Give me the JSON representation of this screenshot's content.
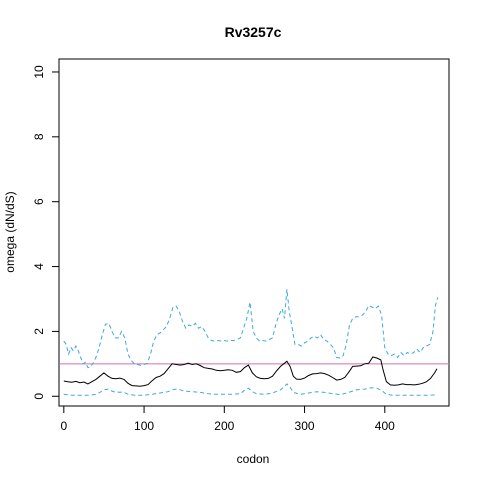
{
  "chart_data": {
    "type": "line",
    "title": "Rv3257c",
    "xlabel": "codon",
    "ylabel": "omega (dN/dS)",
    "xlim": [
      -6,
      480
    ],
    "ylim": [
      -0.3,
      10.4
    ],
    "x_ticks": [
      0,
      100,
      200,
      300,
      400
    ],
    "y_ticks": [
      0,
      2,
      4,
      6,
      8,
      10
    ],
    "reference_line": {
      "y": 1,
      "color": "#d36fb0"
    },
    "series": [
      {
        "style": "solid",
        "color": "#000000",
        "points": [
          [
            0,
            0.47
          ],
          [
            5,
            0.45
          ],
          [
            10,
            0.43
          ],
          [
            15,
            0.46
          ],
          [
            20,
            0.42
          ],
          [
            25,
            0.44
          ],
          [
            30,
            0.38
          ],
          [
            35,
            0.45
          ],
          [
            40,
            0.52
          ],
          [
            45,
            0.62
          ],
          [
            50,
            0.72
          ],
          [
            55,
            0.62
          ],
          [
            60,
            0.55
          ],
          [
            65,
            0.54
          ],
          [
            70,
            0.56
          ],
          [
            75,
            0.52
          ],
          [
            80,
            0.4
          ],
          [
            85,
            0.33
          ],
          [
            90,
            0.32
          ],
          [
            95,
            0.31
          ],
          [
            100,
            0.33
          ],
          [
            105,
            0.36
          ],
          [
            110,
            0.48
          ],
          [
            115,
            0.58
          ],
          [
            120,
            0.62
          ],
          [
            125,
            0.7
          ],
          [
            130,
            0.85
          ],
          [
            135,
            1.0
          ],
          [
            140,
            0.98
          ],
          [
            145,
            0.96
          ],
          [
            150,
            0.98
          ],
          [
            155,
            1.02
          ],
          [
            160,
            0.98
          ],
          [
            165,
            1.0
          ],
          [
            170,
            0.95
          ],
          [
            175,
            0.88
          ],
          [
            180,
            0.86
          ],
          [
            185,
            0.84
          ],
          [
            190,
            0.8
          ],
          [
            195,
            0.79
          ],
          [
            200,
            0.8
          ],
          [
            205,
            0.82
          ],
          [
            210,
            0.8
          ],
          [
            215,
            0.74
          ],
          [
            220,
            0.76
          ],
          [
            225,
            0.88
          ],
          [
            230,
            0.96
          ],
          [
            235,
            0.72
          ],
          [
            240,
            0.6
          ],
          [
            245,
            0.55
          ],
          [
            250,
            0.54
          ],
          [
            255,
            0.55
          ],
          [
            260,
            0.62
          ],
          [
            265,
            0.78
          ],
          [
            270,
            0.92
          ],
          [
            275,
            1.02
          ],
          [
            278,
            1.08
          ],
          [
            282,
            0.92
          ],
          [
            286,
            0.62
          ],
          [
            290,
            0.53
          ],
          [
            295,
            0.52
          ],
          [
            300,
            0.56
          ],
          [
            305,
            0.64
          ],
          [
            310,
            0.69
          ],
          [
            315,
            0.7
          ],
          [
            320,
            0.72
          ],
          [
            325,
            0.7
          ],
          [
            330,
            0.65
          ],
          [
            335,
            0.58
          ],
          [
            340,
            0.5
          ],
          [
            345,
            0.52
          ],
          [
            350,
            0.58
          ],
          [
            355,
            0.74
          ],
          [
            360,
            0.92
          ],
          [
            365,
            0.93
          ],
          [
            370,
            0.94
          ],
          [
            375,
            1.0
          ],
          [
            380,
            1.02
          ],
          [
            385,
            1.21
          ],
          [
            390,
            1.18
          ],
          [
            395,
            1.12
          ],
          [
            398,
            0.8
          ],
          [
            402,
            0.45
          ],
          [
            407,
            0.35
          ],
          [
            412,
            0.34
          ],
          [
            417,
            0.35
          ],
          [
            422,
            0.38
          ],
          [
            427,
            0.36
          ],
          [
            432,
            0.36
          ],
          [
            437,
            0.35
          ],
          [
            442,
            0.37
          ],
          [
            447,
            0.4
          ],
          [
            452,
            0.45
          ],
          [
            457,
            0.55
          ],
          [
            462,
            0.72
          ],
          [
            465,
            0.85
          ]
        ]
      },
      {
        "style": "dashed",
        "color": "#3ea8e0",
        "points": [
          [
            0,
            1.7
          ],
          [
            3,
            1.6
          ],
          [
            6,
            1.3
          ],
          [
            9,
            1.5
          ],
          [
            12,
            1.4
          ],
          [
            15,
            1.55
          ],
          [
            18,
            1.4
          ],
          [
            21,
            1.2
          ],
          [
            24,
            1.0
          ],
          [
            27,
            1.05
          ],
          [
            30,
            0.88
          ],
          [
            33,
            0.9
          ],
          [
            36,
            1.0
          ],
          [
            40,
            1.2
          ],
          [
            44,
            1.5
          ],
          [
            48,
            1.9
          ],
          [
            52,
            2.22
          ],
          [
            56,
            2.25
          ],
          [
            60,
            2.0
          ],
          [
            64,
            1.8
          ],
          [
            68,
            1.8
          ],
          [
            72,
            2.0
          ],
          [
            76,
            1.8
          ],
          [
            80,
            1.3
          ],
          [
            84,
            1.1
          ],
          [
            88,
            1.0
          ],
          [
            92,
            0.98
          ],
          [
            96,
            0.95
          ],
          [
            100,
            0.98
          ],
          [
            104,
            1.02
          ],
          [
            108,
            1.3
          ],
          [
            112,
            1.7
          ],
          [
            116,
            1.9
          ],
          [
            120,
            1.95
          ],
          [
            124,
            2.05
          ],
          [
            128,
            2.15
          ],
          [
            132,
            2.4
          ],
          [
            136,
            2.75
          ],
          [
            140,
            2.78
          ],
          [
            144,
            2.6
          ],
          [
            148,
            2.3
          ],
          [
            152,
            2.1
          ],
          [
            156,
            2.2
          ],
          [
            160,
            2.15
          ],
          [
            164,
            2.25
          ],
          [
            168,
            2.1
          ],
          [
            172,
            2.15
          ],
          [
            176,
            2.0
          ],
          [
            180,
            1.8
          ],
          [
            184,
            1.72
          ],
          [
            188,
            1.7
          ],
          [
            192,
            1.72
          ],
          [
            196,
            1.7
          ],
          [
            200,
            1.72
          ],
          [
            204,
            1.7
          ],
          [
            208,
            1.72
          ],
          [
            212,
            1.72
          ],
          [
            216,
            1.75
          ],
          [
            220,
            1.8
          ],
          [
            224,
            2.1
          ],
          [
            228,
            2.4
          ],
          [
            232,
            2.9
          ],
          [
            236,
            2.0
          ],
          [
            240,
            1.8
          ],
          [
            244,
            1.7
          ],
          [
            248,
            1.72
          ],
          [
            252,
            1.7
          ],
          [
            256,
            1.75
          ],
          [
            260,
            1.8
          ],
          [
            264,
            2.2
          ],
          [
            268,
            2.5
          ],
          [
            272,
            2.7
          ],
          [
            275,
            2.4
          ],
          [
            278,
            3.3
          ],
          [
            281,
            2.6
          ],
          [
            284,
            2.2
          ],
          [
            288,
            1.6
          ],
          [
            292,
            1.6
          ],
          [
            296,
            1.55
          ],
          [
            300,
            1.65
          ],
          [
            304,
            1.7
          ],
          [
            308,
            1.8
          ],
          [
            312,
            1.85
          ],
          [
            316,
            1.8
          ],
          [
            320,
            1.9
          ],
          [
            324,
            1.75
          ],
          [
            328,
            1.7
          ],
          [
            332,
            1.6
          ],
          [
            336,
            1.5
          ],
          [
            340,
            1.2
          ],
          [
            344,
            1.18
          ],
          [
            348,
            1.25
          ],
          [
            352,
            1.6
          ],
          [
            356,
            2.2
          ],
          [
            360,
            2.4
          ],
          [
            364,
            2.45
          ],
          [
            368,
            2.45
          ],
          [
            372,
            2.5
          ],
          [
            376,
            2.6
          ],
          [
            380,
            2.8
          ],
          [
            384,
            2.75
          ],
          [
            388,
            2.7
          ],
          [
            392,
            2.78
          ],
          [
            396,
            2.5
          ],
          [
            400,
            1.5
          ],
          [
            404,
            1.3
          ],
          [
            408,
            1.25
          ],
          [
            412,
            1.3
          ],
          [
            416,
            1.2
          ],
          [
            420,
            1.35
          ],
          [
            424,
            1.25
          ],
          [
            428,
            1.35
          ],
          [
            432,
            1.3
          ],
          [
            436,
            1.35
          ],
          [
            440,
            1.45
          ],
          [
            444,
            1.35
          ],
          [
            448,
            1.5
          ],
          [
            452,
            1.55
          ],
          [
            456,
            1.6
          ],
          [
            460,
            2.0
          ],
          [
            463,
            2.8
          ],
          [
            466,
            3.05
          ]
        ]
      },
      {
        "style": "dashed",
        "color": "#3ea8e0",
        "points": [
          [
            0,
            0.06
          ],
          [
            10,
            0.03
          ],
          [
            20,
            0.03
          ],
          [
            30,
            0.03
          ],
          [
            40,
            0.06
          ],
          [
            45,
            0.12
          ],
          [
            50,
            0.2
          ],
          [
            55,
            0.22
          ],
          [
            60,
            0.16
          ],
          [
            65,
            0.12
          ],
          [
            70,
            0.13
          ],
          [
            75,
            0.12
          ],
          [
            80,
            0.06
          ],
          [
            90,
            0.03
          ],
          [
            100,
            0.03
          ],
          [
            110,
            0.06
          ],
          [
            120,
            0.1
          ],
          [
            130,
            0.14
          ],
          [
            135,
            0.2
          ],
          [
            140,
            0.22
          ],
          [
            145,
            0.2
          ],
          [
            150,
            0.16
          ],
          [
            160,
            0.14
          ],
          [
            170,
            0.12
          ],
          [
            180,
            0.08
          ],
          [
            190,
            0.06
          ],
          [
            200,
            0.06
          ],
          [
            210,
            0.06
          ],
          [
            220,
            0.08
          ],
          [
            225,
            0.18
          ],
          [
            230,
            0.25
          ],
          [
            235,
            0.14
          ],
          [
            240,
            0.08
          ],
          [
            250,
            0.06
          ],
          [
            260,
            0.1
          ],
          [
            270,
            0.2
          ],
          [
            275,
            0.3
          ],
          [
            278,
            0.38
          ],
          [
            282,
            0.28
          ],
          [
            286,
            0.12
          ],
          [
            295,
            0.06
          ],
          [
            305,
            0.1
          ],
          [
            315,
            0.14
          ],
          [
            325,
            0.12
          ],
          [
            335,
            0.08
          ],
          [
            345,
            0.05
          ],
          [
            355,
            0.12
          ],
          [
            365,
            0.2
          ],
          [
            375,
            0.22
          ],
          [
            383,
            0.26
          ],
          [
            390,
            0.25
          ],
          [
            396,
            0.18
          ],
          [
            402,
            0.06
          ],
          [
            410,
            0.03
          ],
          [
            420,
            0.03
          ],
          [
            430,
            0.03
          ],
          [
            440,
            0.03
          ],
          [
            450,
            0.03
          ],
          [
            460,
            0.04
          ],
          [
            465,
            0.05
          ]
        ]
      }
    ]
  }
}
